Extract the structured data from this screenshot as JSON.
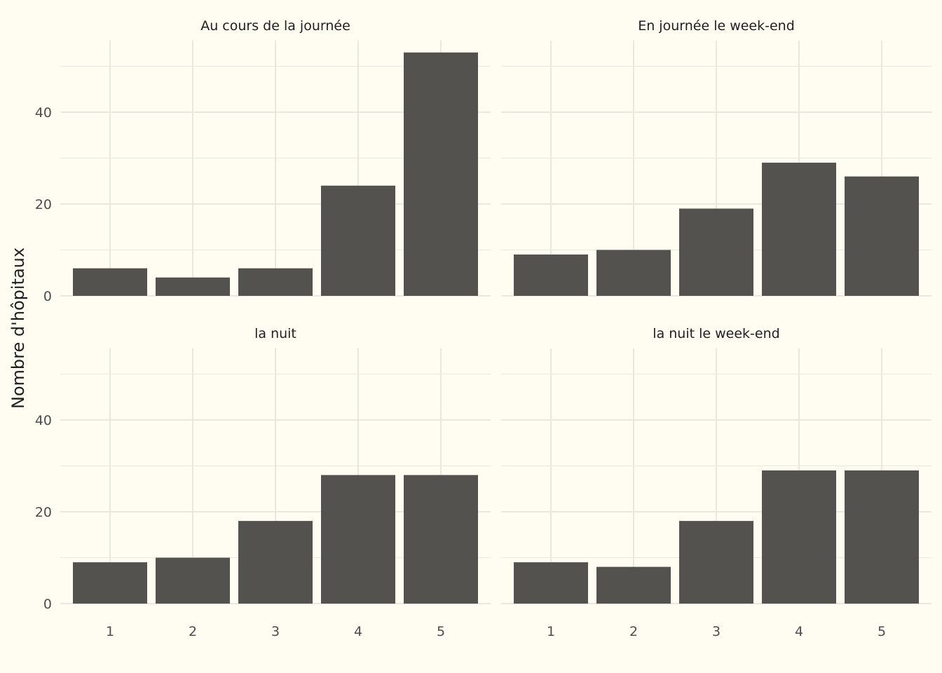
{
  "chart_data": {
    "type": "bar",
    "layout": "facet-2x2",
    "ylabel": "Nombre d'hôpitaux",
    "xlabel": "",
    "categories": [
      "1",
      "2",
      "3",
      "4",
      "5"
    ],
    "yticks": [
      "0",
      "20",
      "40"
    ],
    "ylim": [
      0,
      55
    ],
    "grid": true,
    "bar_color": "#53524e",
    "grid_color": "#e8e8e0",
    "background": "#fffdf2",
    "panels": [
      {
        "title": "Au cours de la journée",
        "values": [
          6,
          4,
          6,
          24,
          53
        ]
      },
      {
        "title": "En journée le week-end",
        "values": [
          9,
          10,
          19,
          29,
          26
        ]
      },
      {
        "title": "la nuit",
        "values": [
          9,
          10,
          18,
          28,
          28
        ]
      },
      {
        "title": "la nuit le week-end",
        "values": [
          9,
          8,
          18,
          29,
          29
        ]
      }
    ]
  }
}
